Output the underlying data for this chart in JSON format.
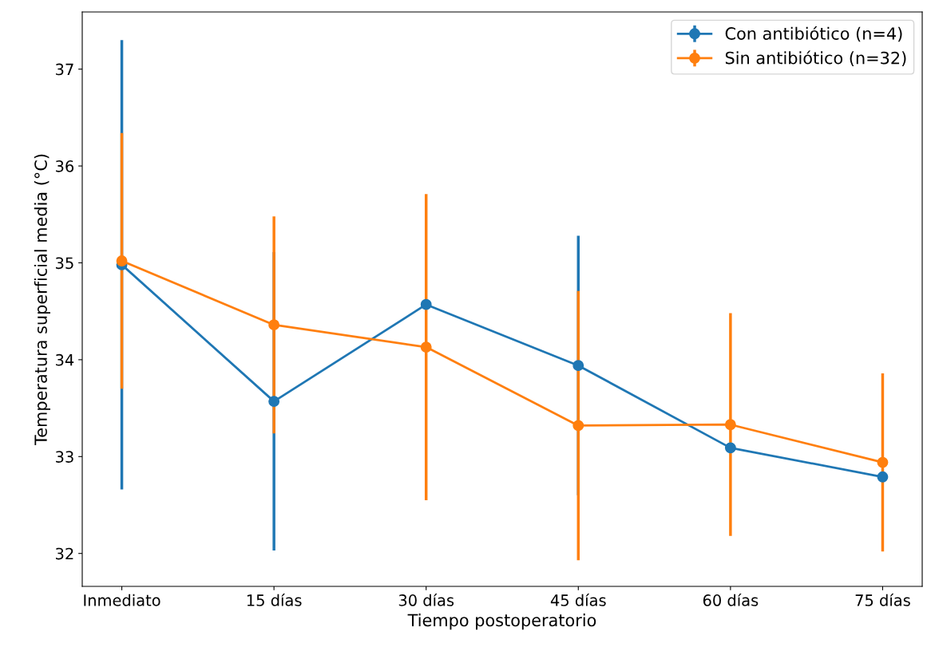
{
  "chart_data": {
    "type": "line",
    "xlabel": "Tiempo postoperatorio",
    "ylabel": "Temperatura superficial media (°C)",
    "categories": [
      "Inmediato",
      "15 días",
      "30 días",
      "45 días",
      "60 días",
      "75 días"
    ],
    "series": [
      {
        "name": "Con antibiótico (n=4)",
        "color": "#1f77b4",
        "values": [
          34.98,
          33.57,
          34.57,
          33.94,
          33.09,
          32.79
        ],
        "errors": [
          2.32,
          1.54,
          null,
          1.34,
          null,
          null
        ]
      },
      {
        "name": "Sin antibiótico (n=32)",
        "color": "#ff7f0e",
        "values": [
          35.02,
          34.36,
          34.13,
          33.32,
          33.33,
          32.94
        ],
        "errors": [
          1.32,
          1.12,
          1.58,
          1.39,
          1.15,
          0.92
        ]
      }
    ],
    "ylim": [
      31.66,
      37.59
    ],
    "yticks": [
      32,
      33,
      34,
      35,
      36,
      37
    ],
    "marker": "circle",
    "line_style": "solid",
    "legend": "top right",
    "grid": false
  }
}
